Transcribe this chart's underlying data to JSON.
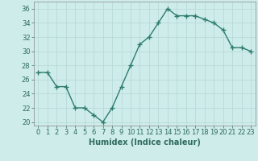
{
  "x": [
    0,
    1,
    2,
    3,
    4,
    5,
    6,
    7,
    8,
    9,
    10,
    11,
    12,
    13,
    14,
    15,
    16,
    17,
    18,
    19,
    20,
    21,
    22,
    23
  ],
  "y": [
    27,
    27,
    25,
    25,
    22,
    22,
    21,
    20,
    22,
    25,
    28,
    31,
    32,
    34,
    36,
    35,
    35,
    35,
    34.5,
    34,
    33,
    30.5,
    30.5,
    30
  ],
  "line_color": "#2e7d6e",
  "marker": "+",
  "marker_size": 4,
  "line_width": 1.0,
  "bg_color": "#ceecea",
  "grid_color": "#b8dbd8",
  "xlabel": "Humidex (Indice chaleur)",
  "xlabel_fontsize": 7,
  "tick_fontsize": 6,
  "ylim": [
    19.5,
    37
  ],
  "yticks": [
    20,
    22,
    24,
    26,
    28,
    30,
    32,
    34,
    36
  ],
  "xlim": [
    -0.5,
    23.5
  ],
  "xticks": [
    0,
    1,
    2,
    3,
    4,
    5,
    6,
    7,
    8,
    9,
    10,
    11,
    12,
    13,
    14,
    15,
    16,
    17,
    18,
    19,
    20,
    21,
    22,
    23
  ]
}
